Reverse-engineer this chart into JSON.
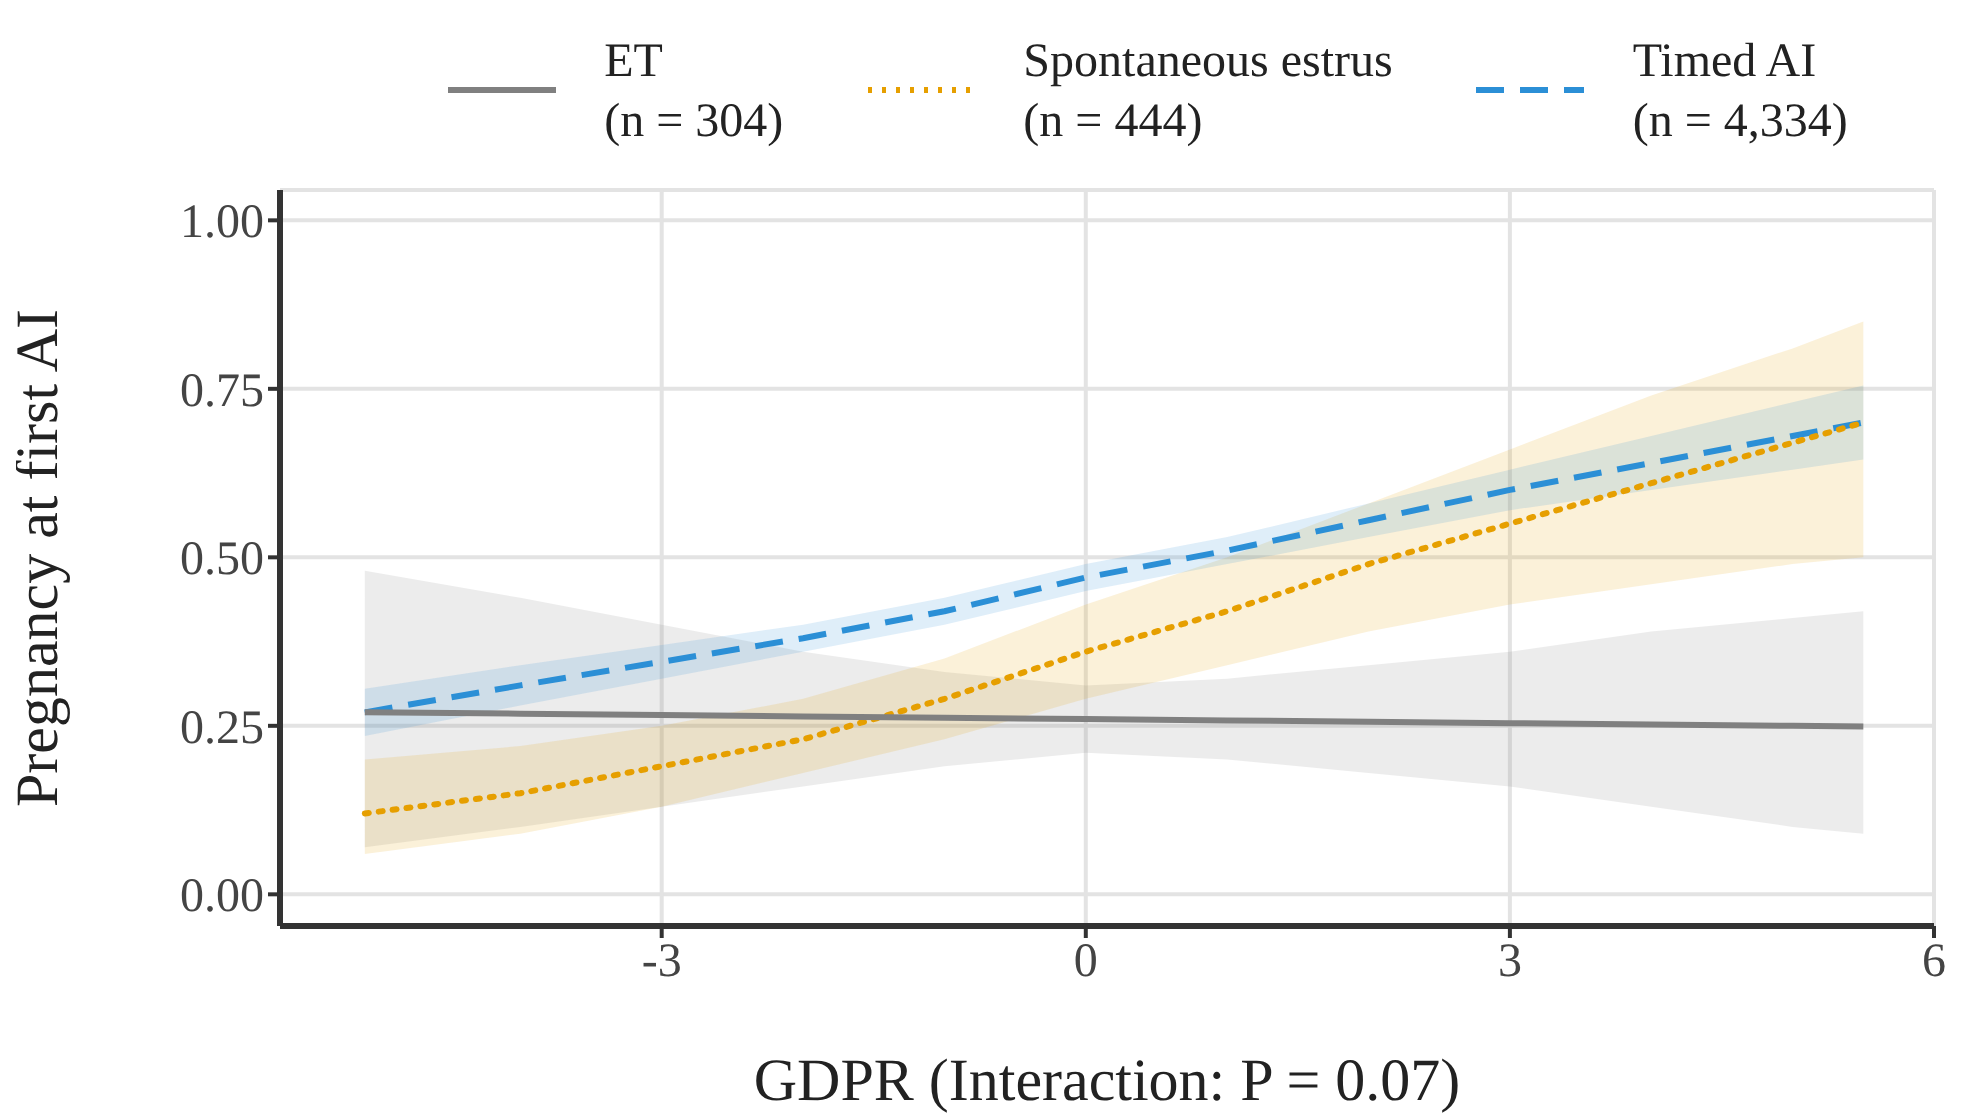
{
  "chart_data": {
    "type": "line",
    "xlabel": "GDPR (Interaction: P = 0.07)",
    "ylabel": "Pregnancy at first AI",
    "x": [
      -5.1,
      -4,
      -3,
      -2,
      -1,
      0,
      1,
      2,
      3,
      4,
      5,
      5.5
    ],
    "series": [
      {
        "name": "ET\n(n = 304)",
        "color": "#808080",
        "line_style": "solid",
        "values": [
          0.27,
          0.268,
          0.266,
          0.264,
          0.262,
          0.26,
          0.258,
          0.256,
          0.254,
          0.252,
          0.25,
          0.249
        ],
        "lower": [
          0.07,
          0.1,
          0.13,
          0.16,
          0.19,
          0.21,
          0.2,
          0.18,
          0.16,
          0.13,
          0.1,
          0.09
        ],
        "upper": [
          0.48,
          0.44,
          0.4,
          0.36,
          0.33,
          0.31,
          0.32,
          0.34,
          0.36,
          0.39,
          0.41,
          0.42
        ]
      },
      {
        "name": "Spontaneous estrus\n(n = 444)",
        "color": "#e69f00",
        "line_style": "dotted",
        "values": [
          0.12,
          0.15,
          0.19,
          0.23,
          0.29,
          0.36,
          0.42,
          0.49,
          0.55,
          0.61,
          0.67,
          0.7
        ],
        "lower": [
          0.06,
          0.09,
          0.13,
          0.18,
          0.23,
          0.29,
          0.34,
          0.39,
          0.43,
          0.46,
          0.49,
          0.5
        ],
        "upper": [
          0.2,
          0.22,
          0.25,
          0.29,
          0.35,
          0.43,
          0.5,
          0.58,
          0.66,
          0.74,
          0.81,
          0.85
        ]
      },
      {
        "name": "Timed AI\n(n = 4,334)",
        "color": "#2b8fd6",
        "line_style": "dashed",
        "values": [
          0.27,
          0.31,
          0.345,
          0.38,
          0.42,
          0.47,
          0.51,
          0.555,
          0.6,
          0.64,
          0.68,
          0.7
        ],
        "lower": [
          0.235,
          0.28,
          0.32,
          0.36,
          0.4,
          0.45,
          0.49,
          0.53,
          0.57,
          0.6,
          0.63,
          0.645
        ],
        "upper": [
          0.305,
          0.34,
          0.37,
          0.4,
          0.44,
          0.49,
          0.53,
          0.58,
          0.63,
          0.68,
          0.73,
          0.755
        ]
      }
    ],
    "xlim": [
      -5.7,
      6
    ],
    "xticks": [
      -3,
      0,
      3,
      6
    ],
    "ylim": [
      -0.047,
      1.045
    ],
    "yticks": [
      {
        "value": 0,
        "label": "0.00"
      },
      {
        "value": 0.25,
        "label": "0.25"
      },
      {
        "value": 0.5,
        "label": "0.50"
      },
      {
        "value": 0.75,
        "label": "0.75"
      },
      {
        "value": 1,
        "label": "1.00"
      }
    ],
    "grid": true,
    "legend": "top",
    "marker": "none"
  }
}
